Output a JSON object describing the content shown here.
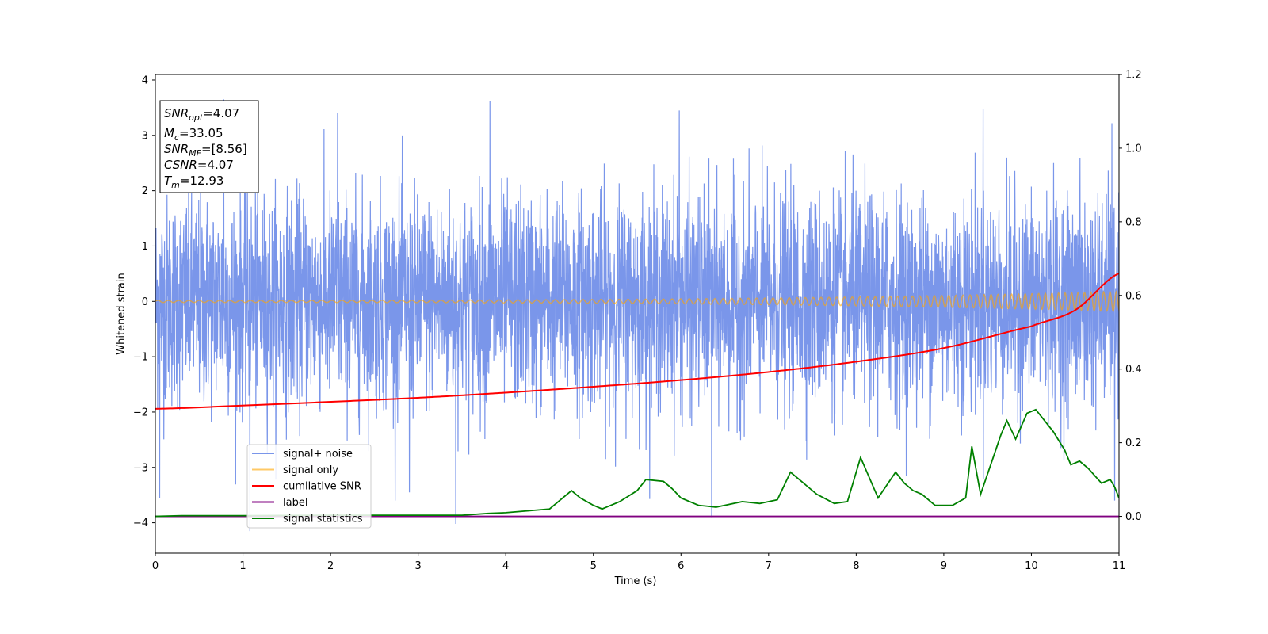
{
  "chart_data": {
    "type": "line",
    "xlabel": "Time (s)",
    "ylabel": "Whitened strain",
    "xlim": [
      0,
      11
    ],
    "ylim": [
      -4.55,
      4.1
    ],
    "y2lim": [
      -0.1,
      1.2
    ],
    "x_ticks": [
      "0",
      "1",
      "2",
      "3",
      "4",
      "5",
      "6",
      "7",
      "8",
      "9",
      "10",
      "11"
    ],
    "y_ticks": [
      "4",
      "3",
      "2",
      "1",
      "0",
      "−1",
      "−2",
      "−3",
      "−4"
    ],
    "y_tick_values": [
      4,
      3,
      2,
      1,
      0,
      -1,
      -2,
      -3,
      -4
    ],
    "y2_ticks": [
      "1.2",
      "1.0",
      "0.8",
      "0.6",
      "0.4",
      "0.2",
      "0.0"
    ],
    "y2_tick_values": [
      1.2,
      1.0,
      0.8,
      0.6,
      0.4,
      0.2,
      0.0
    ],
    "annotation": [
      {
        "var": "SNR",
        "sub": "opt",
        "value": "=4.07"
      },
      {
        "var": "M",
        "sub": "c",
        "value": "=33.05"
      },
      {
        "var": "SNR",
        "sub": "MF",
        "value": "=[8.56]"
      },
      {
        "var": "CSNR",
        "sub": "",
        "value": "=4.07"
      },
      {
        "var": "T",
        "sub": "m",
        "value": "=12.93"
      }
    ],
    "series": [
      {
        "name": "signal+ noise",
        "color": "#4169e1",
        "axis": "left",
        "noise_std": 0.95,
        "spikes": [
          {
            "x": 0.78,
            "y": 3.65
          },
          {
            "x": 3.82,
            "y": 3.62
          },
          {
            "x": 5.98,
            "y": 3.45
          },
          {
            "x": 9.45,
            "y": 3.47
          },
          {
            "x": 10.92,
            "y": 3.22
          },
          {
            "x": 2.08,
            "y": 3.4
          },
          {
            "x": 1.08,
            "y": -4.15
          },
          {
            "x": 3.43,
            "y": -4.02
          },
          {
            "x": 6.35,
            "y": -3.9
          },
          {
            "x": 0.05,
            "y": -3.55
          },
          {
            "x": 2.9,
            "y": -3.45
          },
          {
            "x": 10.95,
            "y": -3.6
          }
        ]
      },
      {
        "name": "signal only",
        "color": "#ffa500",
        "axis": "left",
        "amplitude_start": 0.02,
        "amplitude_end": 0.18,
        "freq_start": 8.5,
        "freq_end": 14
      },
      {
        "name": "cumilative SNR",
        "color": "#ff0000",
        "axis": "right",
        "x": [
          0,
          1,
          2,
          3,
          4,
          5,
          6,
          7,
          8,
          9,
          10,
          10.5,
          11
        ],
        "y": [
          0.292,
          0.301,
          0.311,
          0.322,
          0.336,
          0.352,
          0.37,
          0.392,
          0.42,
          0.457,
          0.516,
          0.56,
          0.66
        ]
      },
      {
        "name": "label",
        "color": "#800080",
        "axis": "right",
        "x": [
          0,
          11
        ],
        "y": [
          0.0,
          0.0
        ]
      },
      {
        "name": "signal statistics",
        "color": "#008000",
        "axis": "right",
        "x": [
          0,
          0.3,
          1,
          2,
          3,
          3.5,
          3.8,
          4.0,
          4.5,
          4.75,
          4.85,
          5.0,
          5.1,
          5.3,
          5.5,
          5.6,
          5.8,
          5.9,
          6.0,
          6.2,
          6.4,
          6.5,
          6.7,
          6.9,
          7.1,
          7.25,
          7.4,
          7.55,
          7.75,
          7.9,
          8.05,
          8.25,
          8.45,
          8.55,
          8.65,
          8.75,
          8.9,
          9.1,
          9.25,
          9.32,
          9.42,
          9.55,
          9.65,
          9.72,
          9.82,
          9.95,
          10.05,
          10.25,
          10.38,
          10.45,
          10.55,
          10.65,
          10.8,
          10.9,
          10.95,
          11.0
        ],
        "y": [
          0.0,
          0.002,
          0.002,
          0.003,
          0.003,
          0.003,
          0.008,
          0.01,
          0.02,
          0.07,
          0.05,
          0.03,
          0.02,
          0.04,
          0.07,
          0.1,
          0.095,
          0.075,
          0.05,
          0.03,
          0.025,
          0.03,
          0.04,
          0.035,
          0.045,
          0.12,
          0.09,
          0.06,
          0.035,
          0.04,
          0.16,
          0.05,
          0.12,
          0.09,
          0.07,
          0.06,
          0.03,
          0.03,
          0.05,
          0.19,
          0.06,
          0.15,
          0.22,
          0.26,
          0.21,
          0.28,
          0.29,
          0.23,
          0.18,
          0.14,
          0.15,
          0.13,
          0.09,
          0.1,
          0.08,
          0.05
        ]
      }
    ],
    "legend": [
      "signal+ noise",
      "signal only",
      "cumilative SNR",
      "label",
      "signal statistics"
    ]
  }
}
